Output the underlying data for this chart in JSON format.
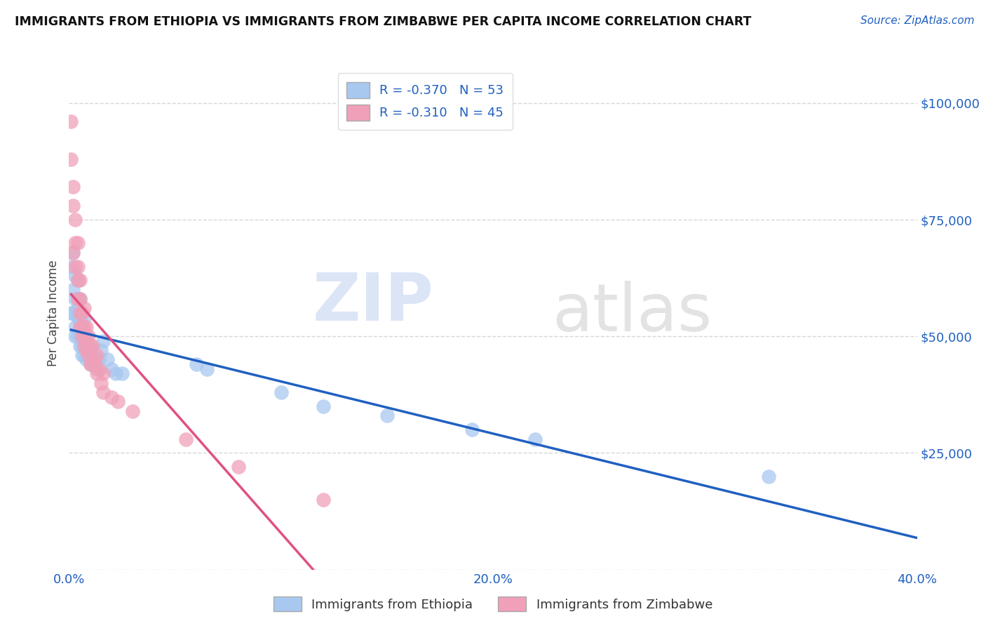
{
  "title": "IMMIGRANTS FROM ETHIOPIA VS IMMIGRANTS FROM ZIMBABWE PER CAPITA INCOME CORRELATION CHART",
  "source": "Source: ZipAtlas.com",
  "ylabel": "Per Capita Income",
  "xlim": [
    0.0,
    0.4
  ],
  "ylim": [
    0,
    110000
  ],
  "yticks": [
    0,
    25000,
    50000,
    75000,
    100000
  ],
  "ytick_labels": [
    "",
    "$25,000",
    "$50,000",
    "$75,000",
    "$100,000"
  ],
  "xticks": [
    0.0,
    0.1,
    0.2,
    0.3,
    0.4
  ],
  "xtick_labels": [
    "0.0%",
    "",
    "20.0%",
    "",
    "40.0%"
  ],
  "ethiopia_color": "#A8C8F0",
  "zimbabwe_color": "#F0A0B8",
  "ethiopia_line_color": "#2060C0",
  "zimbabwe_line_color": "#E05080",
  "ethiopia_R": -0.37,
  "ethiopia_N": 53,
  "zimbabwe_R": -0.31,
  "zimbabwe_N": 45,
  "legend_label_ethiopia": "Immigrants from Ethiopia",
  "legend_label_zimbabwe": "Immigrants from Zimbabwe",
  "background_color": "#FFFFFF",
  "watermark_zip": "ZIP",
  "watermark_atlas": "atlas",
  "ethiopia_scatter_x": [
    0.001,
    0.001,
    0.002,
    0.002,
    0.002,
    0.003,
    0.003,
    0.003,
    0.003,
    0.004,
    0.004,
    0.004,
    0.004,
    0.004,
    0.005,
    0.005,
    0.005,
    0.005,
    0.005,
    0.006,
    0.006,
    0.006,
    0.006,
    0.007,
    0.007,
    0.007,
    0.007,
    0.008,
    0.008,
    0.008,
    0.009,
    0.009,
    0.01,
    0.01,
    0.01,
    0.011,
    0.012,
    0.013,
    0.014,
    0.015,
    0.016,
    0.018,
    0.02,
    0.022,
    0.025,
    0.06,
    0.065,
    0.1,
    0.12,
    0.15,
    0.19,
    0.22,
    0.33
  ],
  "ethiopia_scatter_y": [
    55000,
    65000,
    60000,
    55000,
    68000,
    50000,
    52000,
    58000,
    63000,
    50000,
    54000,
    56000,
    58000,
    62000,
    48000,
    50000,
    52000,
    54000,
    58000,
    46000,
    48000,
    50000,
    52000,
    46000,
    48000,
    50000,
    54000,
    45000,
    47000,
    50000,
    46000,
    48000,
    44000,
    46000,
    48000,
    45000,
    44000,
    43000,
    45000,
    47000,
    49000,
    45000,
    43000,
    42000,
    42000,
    44000,
    43000,
    38000,
    35000,
    33000,
    30000,
    28000,
    20000
  ],
  "zimbabwe_scatter_x": [
    0.001,
    0.001,
    0.002,
    0.002,
    0.002,
    0.003,
    0.003,
    0.003,
    0.004,
    0.004,
    0.004,
    0.004,
    0.005,
    0.005,
    0.005,
    0.005,
    0.006,
    0.006,
    0.006,
    0.007,
    0.007,
    0.007,
    0.007,
    0.008,
    0.008,
    0.008,
    0.009,
    0.009,
    0.01,
    0.01,
    0.011,
    0.011,
    0.012,
    0.013,
    0.013,
    0.014,
    0.015,
    0.016,
    0.016,
    0.02,
    0.023,
    0.03,
    0.055,
    0.08,
    0.12
  ],
  "zimbabwe_scatter_y": [
    88000,
    96000,
    78000,
    82000,
    68000,
    65000,
    70000,
    75000,
    58000,
    62000,
    65000,
    70000,
    52000,
    55000,
    58000,
    62000,
    50000,
    52000,
    55000,
    48000,
    50000,
    52000,
    56000,
    47000,
    49000,
    52000,
    46000,
    50000,
    44000,
    48000,
    44000,
    48000,
    45000,
    42000,
    46000,
    43000,
    40000,
    38000,
    42000,
    37000,
    36000,
    34000,
    28000,
    22000,
    15000
  ]
}
